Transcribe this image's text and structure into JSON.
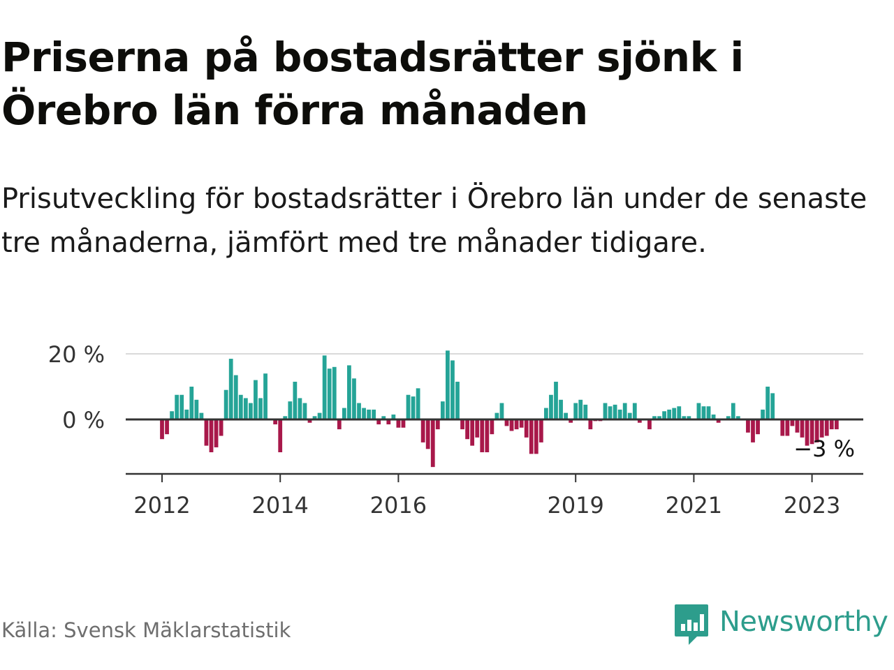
{
  "title": "Priserna på bostadsrätter sjönk i Örebro län förra månaden",
  "subtitle": "Prisutveckling för bostadsrätter i Örebro län under de senaste tre månaderna, jämfört med tre månader tidigare.",
  "source": "Källa: Svensk Mäklarstatistik",
  "brand": "Newsworthy",
  "colors": {
    "positive": "#25a497",
    "negative": "#a8184a",
    "zero_line": "#333333",
    "grid": "#d9d9d9",
    "brand": "#2d9d8c"
  },
  "chart_data": {
    "type": "bar",
    "x_start": "2012-01",
    "x_end": "2023-05",
    "interval": "month",
    "ylim": [
      -16,
      22
    ],
    "y_ticks": [
      {
        "value": 0,
        "label": "0 %"
      },
      {
        "value": 20,
        "label": "20 %"
      }
    ],
    "x_ticks": [
      "2012",
      "2014",
      "2016",
      "2019",
      "2021",
      "2023"
    ],
    "annotation": "−3 %",
    "grid": true,
    "values": [
      -6,
      -4.5,
      2.5,
      7.5,
      7.5,
      3,
      10,
      6,
      2,
      -8,
      -10,
      -8.5,
      -5,
      9,
      18.5,
      13.5,
      7.5,
      6.5,
      5,
      12,
      6.5,
      14,
      0,
      -1.5,
      -10,
      1,
      5.5,
      11.5,
      6.5,
      5,
      -1,
      1,
      2,
      19.5,
      15.5,
      16,
      -3,
      3.5,
      16.5,
      12.5,
      5,
      3.5,
      3,
      3,
      -1.5,
      1,
      -1.5,
      1.5,
      -2.5,
      -2.5,
      7.5,
      7,
      9.5,
      -7,
      -9,
      -14.5,
      -3,
      5.5,
      21,
      18,
      11.5,
      -3,
      -6,
      -8,
      -5.5,
      -10,
      -10,
      -4.5,
      2,
      5,
      -2,
      -3.5,
      -3,
      -2.5,
      -5.5,
      -10.5,
      -10.5,
      -7,
      3.5,
      7.5,
      11.5,
      6,
      2,
      -1,
      5,
      6,
      4.5,
      -3,
      -0.5,
      -0.5,
      5,
      4,
      4.5,
      3,
      5,
      2,
      5,
      -1,
      0,
      -3,
      1,
      1,
      2.5,
      3,
      3.5,
      4,
      1,
      1,
      0,
      5,
      4,
      4,
      1.5,
      -1,
      0,
      1,
      5,
      1,
      0,
      -4,
      -7,
      -4.5,
      3,
      10,
      8,
      0,
      -5,
      -5,
      -2,
      -4,
      -5.5,
      -8,
      -7.5,
      -7,
      -5.5,
      -5,
      -3,
      -3
    ]
  }
}
